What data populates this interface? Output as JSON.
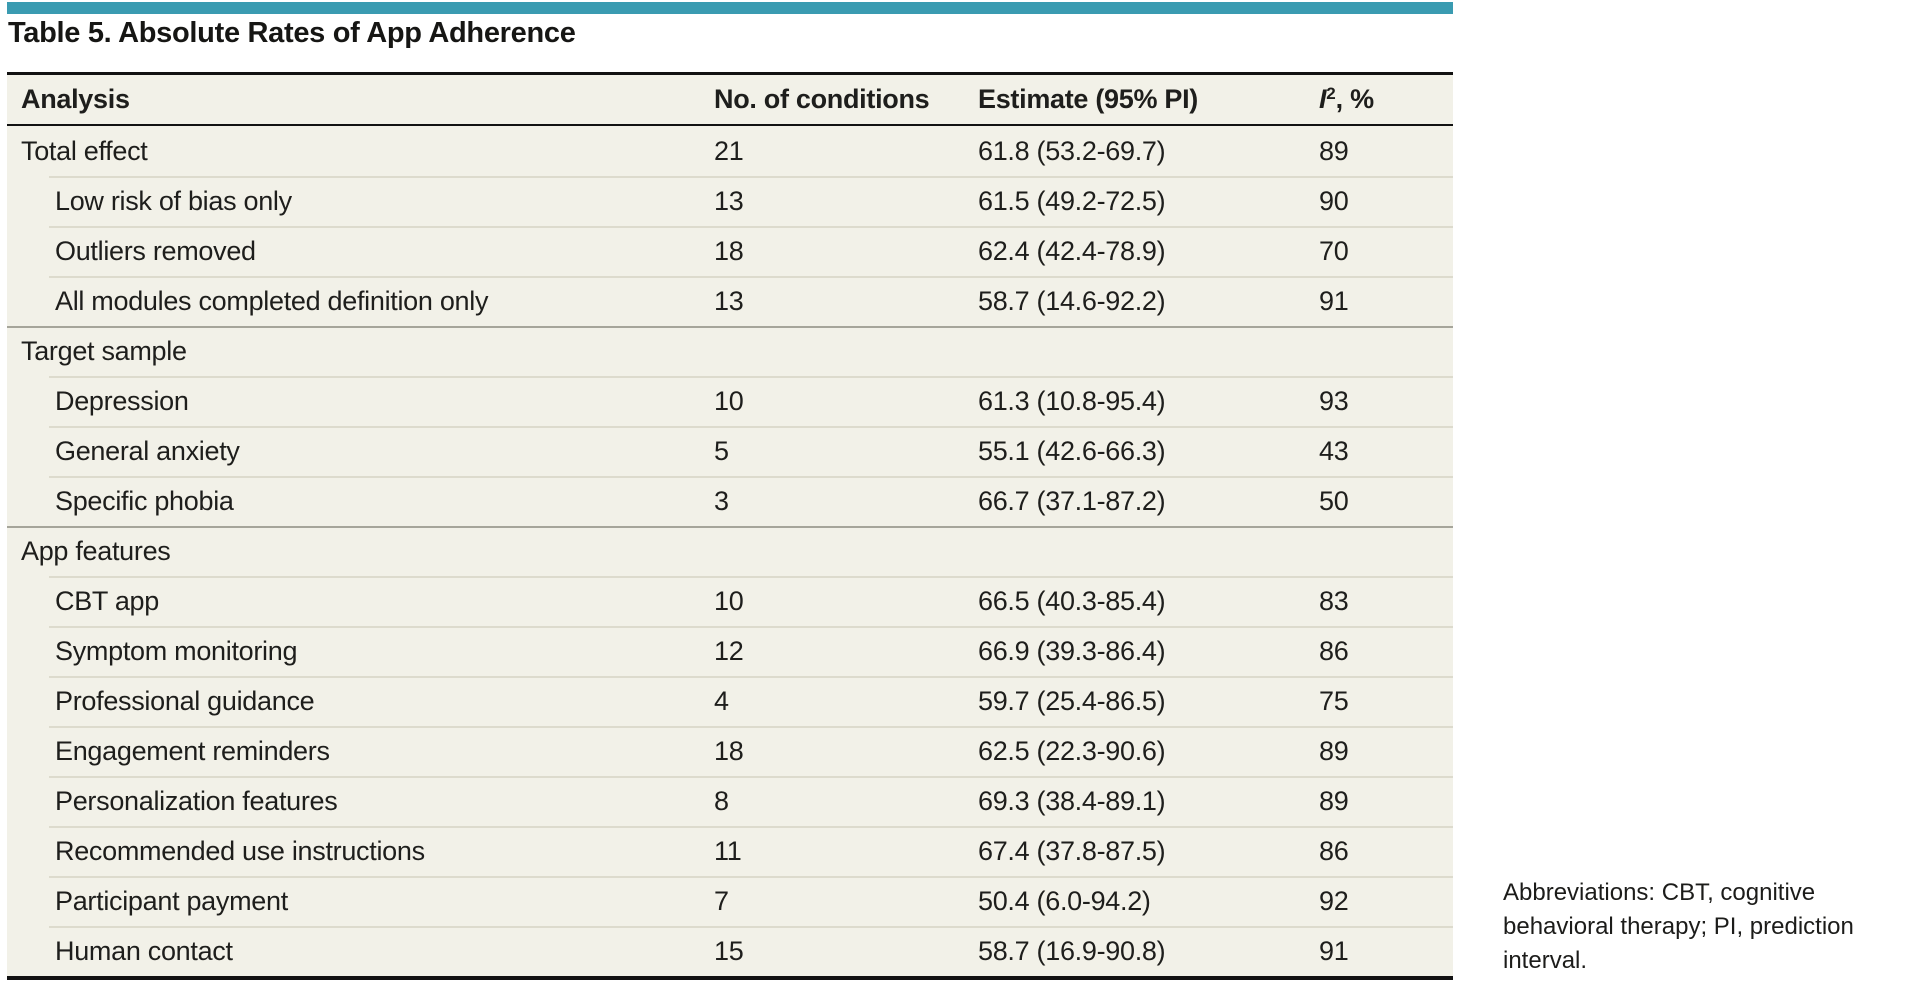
{
  "title": "Table 5. Absolute Rates of App Adherence",
  "colors": {
    "accent_bar": "#3a9bb1",
    "table_background": "#f2f1e8",
    "rule_black": "#121212",
    "divider_light": "#dddbcd",
    "divider_section": "#a6a59a"
  },
  "table": {
    "columns": {
      "analysis": "Analysis",
      "conditions": "No. of conditions",
      "estimate": "Estimate (95% PI)",
      "i2_letter": "I",
      "i2_superscript": "2",
      "i2_suffix": ", %"
    },
    "rows": [
      {
        "label": "Total effect",
        "indent": false,
        "section": false,
        "conditions": "21",
        "estimate": "61.8 (53.2-69.7)",
        "i2": "89"
      },
      {
        "label": "Low risk of bias only",
        "indent": true,
        "section": false,
        "conditions": "13",
        "estimate": "61.5 (49.2-72.5)",
        "i2": "90"
      },
      {
        "label": "Outliers removed",
        "indent": true,
        "section": false,
        "conditions": "18",
        "estimate": "62.4 (42.4-78.9)",
        "i2": "70"
      },
      {
        "label": "All modules completed definition only",
        "indent": true,
        "section": false,
        "conditions": "13",
        "estimate": "58.7 (14.6-92.2)",
        "i2": "91"
      },
      {
        "label": "Target sample",
        "indent": false,
        "section": true,
        "conditions": "",
        "estimate": "",
        "i2": ""
      },
      {
        "label": "Depression",
        "indent": true,
        "section": false,
        "conditions": "10",
        "estimate": "61.3 (10.8-95.4)",
        "i2": "93"
      },
      {
        "label": "General anxiety",
        "indent": true,
        "section": false,
        "conditions": "5",
        "estimate": "55.1 (42.6-66.3)",
        "i2": "43"
      },
      {
        "label": "Specific phobia",
        "indent": true,
        "section": false,
        "conditions": "3",
        "estimate": "66.7 (37.1-87.2)",
        "i2": "50"
      },
      {
        "label": "App features",
        "indent": false,
        "section": true,
        "conditions": "",
        "estimate": "",
        "i2": ""
      },
      {
        "label": "CBT app",
        "indent": true,
        "section": false,
        "conditions": "10",
        "estimate": "66.5 (40.3-85.4)",
        "i2": "83"
      },
      {
        "label": "Symptom monitoring",
        "indent": true,
        "section": false,
        "conditions": "12",
        "estimate": "66.9 (39.3-86.4)",
        "i2": "86"
      },
      {
        "label": "Professional guidance",
        "indent": true,
        "section": false,
        "conditions": "4",
        "estimate": "59.7 (25.4-86.5)",
        "i2": "75"
      },
      {
        "label": "Engagement reminders",
        "indent": true,
        "section": false,
        "conditions": "18",
        "estimate": "62.5 (22.3-90.6)",
        "i2": "89"
      },
      {
        "label": "Personalization features",
        "indent": true,
        "section": false,
        "conditions": "8",
        "estimate": "69.3 (38.4-89.1)",
        "i2": "89"
      },
      {
        "label": "Recommended use instructions",
        "indent": true,
        "section": false,
        "conditions": "11",
        "estimate": "67.4 (37.8-87.5)",
        "i2": "86"
      },
      {
        "label": "Participant payment",
        "indent": true,
        "section": false,
        "conditions": "7",
        "estimate": "50.4 (6.0-94.2)",
        "i2": "92"
      },
      {
        "label": "Human contact",
        "indent": true,
        "section": false,
        "conditions": "15",
        "estimate": "58.7 (16.9-90.8)",
        "i2": "91"
      }
    ]
  },
  "footnote": {
    "lines": [
      "Abbreviations: CBT, cognitive",
      "behavioral therapy; PI, prediction",
      "interval."
    ]
  }
}
